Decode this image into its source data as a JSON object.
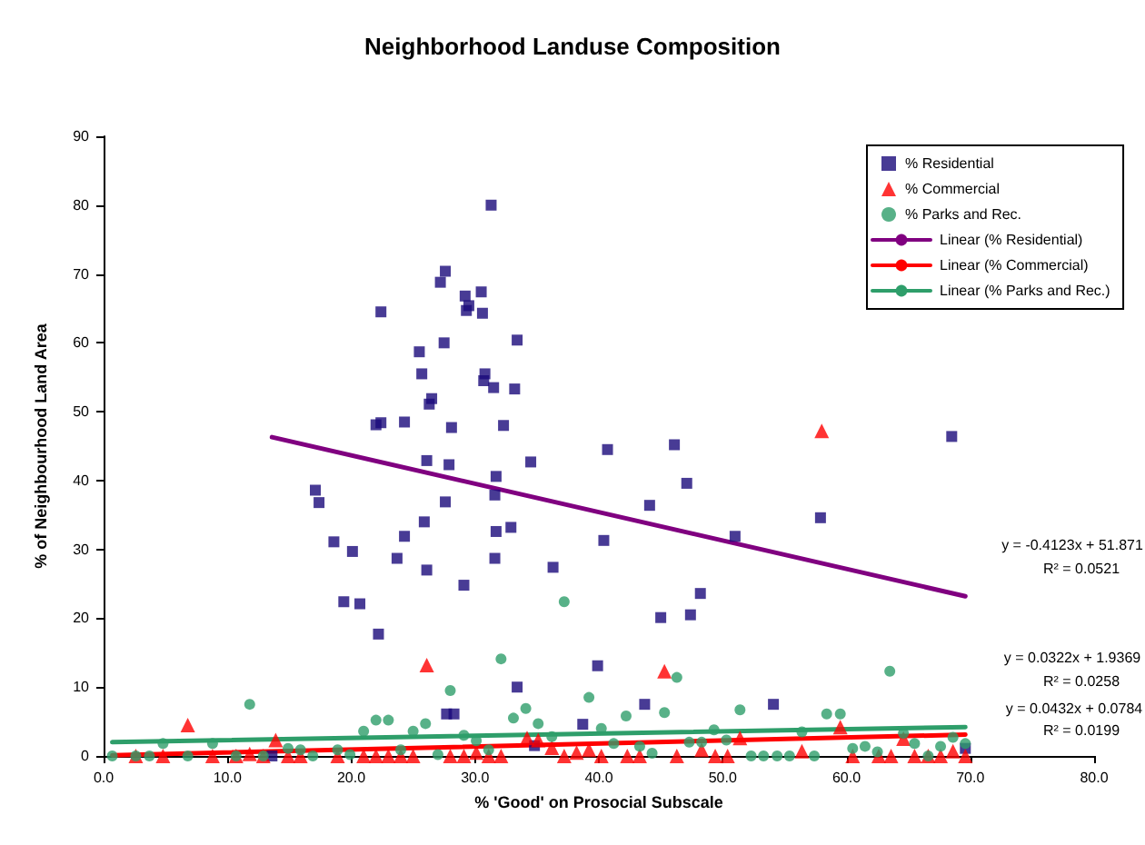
{
  "chart_data": {
    "type": "scatter",
    "title": "Neighborhood Landuse Composition",
    "xlabel": "% 'Good' on Prosocial Subscale",
    "ylabel": "% of Neighbourhood Land Area",
    "xlim": [
      0,
      80
    ],
    "xticks": [
      {
        "value": 0,
        "label": "0.0"
      },
      {
        "value": 10,
        "label": "10.0"
      },
      {
        "value": 20,
        "label": "20.0"
      },
      {
        "value": 30,
        "label": "30.0"
      },
      {
        "value": 40,
        "label": "40.0"
      },
      {
        "value": 50,
        "label": "50.0"
      },
      {
        "value": 60,
        "label": "60.0"
      },
      {
        "value": 70,
        "label": "70.0"
      },
      {
        "value": 80,
        "label": "80.0"
      }
    ],
    "ylim": [
      0,
      90
    ],
    "yticks": [
      0,
      10,
      20,
      30,
      40,
      50,
      60,
      70,
      80,
      90
    ],
    "grid": false,
    "legend": "top right",
    "series": [
      {
        "name": "% Residential",
        "marker": "square",
        "color": "#1a0a7a",
        "x": [
          31.3,
          27.6,
          27.2,
          29.2,
          30.5,
          29.5,
          29.3,
          30.6,
          22.4,
          25.5,
          27.5,
          33.4,
          25.7,
          30.8,
          30.7,
          31.5,
          33.2,
          26.5,
          26.3,
          22.0,
          22.4,
          24.3,
          28.1,
          32.3,
          40.7,
          26.1,
          27.9,
          34.5,
          31.7,
          17.1,
          17.4,
          27.6,
          31.6,
          18.6,
          20.1,
          24.3,
          25.9,
          31.7,
          32.9,
          23.7,
          26.1,
          31.6,
          40.4,
          36.3,
          29.1,
          19.4,
          20.7,
          22.2,
          39.9,
          33.4,
          27.7,
          28.3,
          38.7,
          34.8,
          13.6,
          46.1,
          47.1,
          44.1,
          51.0,
          57.9,
          68.5,
          48.2,
          45.0,
          47.4,
          43.7,
          54.1,
          69.6
        ],
        "values": [
          80.0,
          70.4,
          68.8,
          66.8,
          67.4,
          65.4,
          64.7,
          64.3,
          64.5,
          58.7,
          60.0,
          60.4,
          55.5,
          55.5,
          54.5,
          53.5,
          53.3,
          51.9,
          51.1,
          48.1,
          48.4,
          48.5,
          47.7,
          48.0,
          44.5,
          42.9,
          42.3,
          42.7,
          40.6,
          38.6,
          36.8,
          36.9,
          37.9,
          31.1,
          29.7,
          31.9,
          34.0,
          32.6,
          33.2,
          28.7,
          27.0,
          28.7,
          31.3,
          27.4,
          24.8,
          22.4,
          22.1,
          17.7,
          13.1,
          10.0,
          6.1,
          6.1,
          4.6,
          1.5,
          0,
          45.2,
          39.6,
          36.4,
          31.9,
          34.6,
          46.4,
          23.6,
          20.1,
          20.5,
          7.5,
          7.5,
          1.1
        ]
      },
      {
        "name": "% Commercial",
        "marker": "triangle",
        "color": "#ff0000",
        "x": [
          58.0,
          26.1,
          45.3,
          6.8,
          13.9,
          30.1,
          34.2,
          35.1,
          36.2,
          38.2,
          39.2,
          12.9,
          14.9,
          15.9,
          18.9,
          21.0,
          22.0,
          23.0,
          24.0,
          25.0,
          28.0,
          29.1,
          31.1,
          32.1,
          37.2,
          40.2,
          42.3,
          43.3,
          46.3,
          47.3,
          48.3,
          49.4,
          50.4,
          51.4,
          56.4,
          59.5,
          60.5,
          62.6,
          63.6,
          64.6,
          65.5,
          66.6,
          67.6,
          68.6,
          69.6,
          2.6,
          4.8,
          8.8,
          10.7,
          11.8
        ],
        "values": [
          47.2,
          13.2,
          12.3,
          4.5,
          2.3,
          0.5,
          2.6,
          2.3,
          1.2,
          0.5,
          0.9,
          0,
          0,
          0,
          0,
          0,
          0,
          0,
          0,
          0,
          0,
          0,
          0,
          0,
          0,
          0,
          0,
          0,
          0,
          null,
          0.9,
          0,
          0,
          2.6,
          0.7,
          4.2,
          0,
          0,
          0,
          2.5,
          0,
          0,
          0,
          0.7,
          0,
          0,
          0,
          0,
          0,
          0.3
        ]
      },
      {
        "name": "% Parks and Rec.",
        "marker": "circle",
        "color": "#2e9e6a",
        "x": [
          11.8,
          37.2,
          63.5,
          32.1,
          46.3,
          28.0,
          34.1,
          33.1,
          39.2,
          22.0,
          23.0,
          21.0,
          26.0,
          25.0,
          29.1,
          35.1,
          36.2,
          40.2,
          42.2,
          45.3,
          51.4,
          58.4,
          59.5,
          49.3,
          56.4,
          64.6,
          68.6,
          41.2,
          43.3,
          44.3,
          47.3,
          48.3,
          50.3,
          52.3,
          53.3,
          54.4,
          55.4,
          57.4,
          60.5,
          61.5,
          62.5,
          65.5,
          66.6,
          67.6,
          69.6,
          0.7,
          2.6,
          3.7,
          4.8,
          6.8,
          8.8,
          10.7,
          12.9,
          14.9,
          15.9,
          16.9,
          18.9,
          19.9,
          24.0,
          27.0,
          30.1,
          31.1
        ],
        "values": [
          7.5,
          22.4,
          12.3,
          14.1,
          11.4,
          9.5,
          6.9,
          5.5,
          8.5,
          5.2,
          5.2,
          3.6,
          4.7,
          3.6,
          3.0,
          4.7,
          2.8,
          4.0,
          5.8,
          6.3,
          6.7,
          6.1,
          6.1,
          3.8,
          3.5,
          3.3,
          2.7,
          1.8,
          1.4,
          0.4,
          2.0,
          2.0,
          2.3,
          0,
          0,
          0,
          0,
          0,
          1.1,
          1.4,
          0.6,
          1.8,
          0,
          1.4,
          1.8,
          0,
          0,
          0,
          1.8,
          0,
          1.8,
          0,
          0,
          1.1,
          0.9,
          0,
          0.9,
          0.2,
          0.9,
          0.2,
          2.2,
          0.9
        ]
      },
      {
        "name": "Linear (% Residential)",
        "type": "line",
        "marker": "none",
        "line_style": "solid",
        "color": "#800080",
        "x": [
          13.6,
          69.6
        ],
        "values": [
          46.3,
          23.2
        ]
      },
      {
        "name": "Linear (% Commercial)",
        "type": "line",
        "marker": "none",
        "line_style": "solid",
        "color": "#ff0000",
        "x": [
          0.7,
          69.6
        ],
        "values": [
          0.1,
          3.1
        ]
      },
      {
        "name": "Linear (% Parks and Rec.)",
        "type": "line",
        "marker": "none",
        "line_style": "solid",
        "color": "#2e9e6a",
        "x": [
          0.7,
          69.6
        ],
        "values": [
          2.0,
          4.2
        ]
      }
    ],
    "annotations": [
      "y = -0.4123x + 51.871",
      "R² = 0.0521",
      "y = 0.0322x + 1.9369",
      "R² = 0.0258",
      "y = 0.0432x + 0.0784",
      "R² = 0.0199"
    ]
  }
}
